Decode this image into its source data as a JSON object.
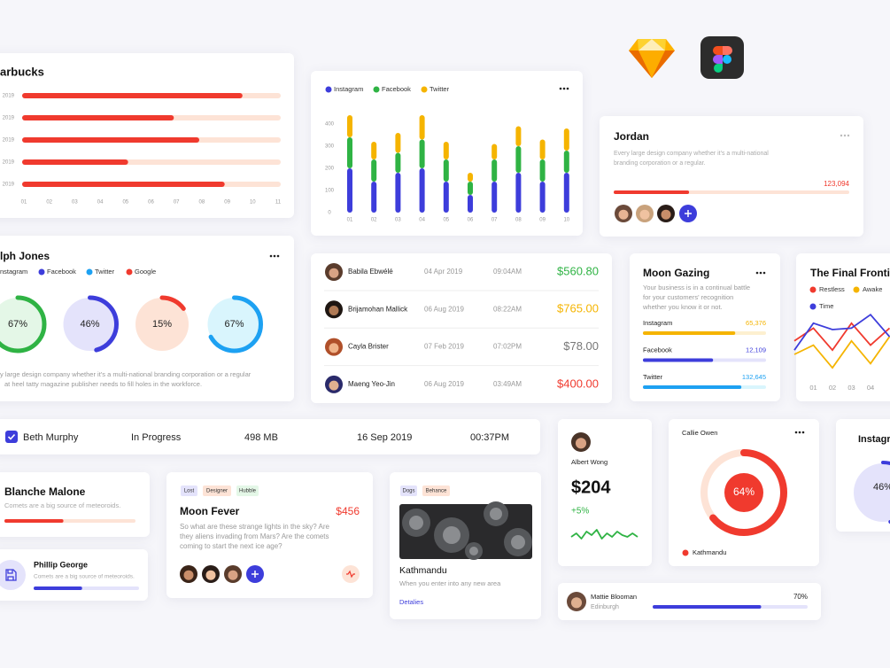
{
  "starbucks": {
    "type": "bar",
    "title": "arbucks",
    "categories": [
      "2019",
      "2019",
      "2019",
      "2019",
      "2019"
    ],
    "values": [
      9.6,
      6.9,
      7.9,
      5.1,
      8.9
    ],
    "color": "#f03a2e",
    "track_color": "#fde3d6",
    "xlim": [
      1,
      11
    ],
    "xticks": [
      {
        "value": 1,
        "label": "01"
      },
      {
        "value": 2,
        "label": "02"
      },
      {
        "value": 3,
        "label": "03"
      },
      {
        "value": 4,
        "label": "04"
      },
      {
        "value": 5,
        "label": "05"
      },
      {
        "value": 6,
        "label": "06"
      },
      {
        "value": 7,
        "label": "07"
      },
      {
        "value": 8,
        "label": "08"
      },
      {
        "value": 9,
        "label": "09"
      },
      {
        "value": 10,
        "label": "10"
      },
      {
        "value": 11,
        "label": "11"
      }
    ]
  },
  "activity": {
    "type": "stacked-bar",
    "categories": [
      "01",
      "02",
      "03",
      "04",
      "05",
      "06",
      "07",
      "08",
      "09",
      "10"
    ],
    "series": [
      {
        "name": "Instagram",
        "color": "#3d3ddb",
        "values": [
          200,
          140,
          180,
          200,
          140,
          80,
          140,
          180,
          140,
          180
        ]
      },
      {
        "name": "Facebook",
        "color": "#2fb344",
        "values": [
          140,
          100,
          90,
          130,
          100,
          60,
          100,
          120,
          100,
          100
        ]
      },
      {
        "name": "Twitter",
        "color": "#f5b400",
        "values": [
          100,
          80,
          90,
          110,
          80,
          40,
          70,
          90,
          90,
          100
        ]
      }
    ],
    "ylim": [
      0,
      450
    ],
    "yticks": [
      0,
      100,
      200,
      300,
      400
    ]
  },
  "jordan": {
    "title": "Jordan",
    "description": [
      "Every large design company whether it's a multi-national",
      "branding corporation or a regular."
    ],
    "value_label": "123,094",
    "progress": 32,
    "color": "#f03a2e"
  },
  "ralph": {
    "title": "lph Jones",
    "legend": [
      {
        "name": "nstagram",
        "color": "#3d3ddb"
      },
      {
        "name": "Facebook",
        "color": "#3d3ddb"
      },
      {
        "name": "Twitter",
        "color": "#1da1f2"
      },
      {
        "name": "Google",
        "color": "#f03a2e"
      }
    ],
    "donuts": [
      {
        "value": 67,
        "label": "67%",
        "color": "#2fb344",
        "fill": "#e4f7e7"
      },
      {
        "value": 46,
        "label": "46%",
        "color": "#3d3ddb",
        "fill": "#e4e3fb"
      },
      {
        "value": 15,
        "label": "15%",
        "color": "#f03a2e",
        "fill": "#fde3d6"
      },
      {
        "value": 67,
        "label": "67%",
        "color": "#1da1f2",
        "fill": "#d9f5fd"
      }
    ],
    "description": [
      "y large design company whether it's a multi-national branding corporation or a regular",
      "at heel tatty magazine publisher needs to fill holes in the workforce."
    ]
  },
  "task": {
    "name": "Beth Murphy",
    "status": "In Progress",
    "size": "498 MB",
    "date": "16 Sep 2019",
    "time": "00:37PM"
  },
  "transactions": {
    "rows": [
      {
        "name": "Babila Ebwélé",
        "date": "04 Apr 2019",
        "time": "09:04AM",
        "amount": "$560.80",
        "color": "#2fb344"
      },
      {
        "name": "Brijamohan Mallick",
        "date": "06 Aug 2019",
        "time": "08:22AM",
        "amount": "$765.00",
        "color": "#f5b400"
      },
      {
        "name": "Cayla Brister",
        "date": "07 Feb 2019",
        "time": "07:02PM",
        "amount": "$78.00",
        "color": "#777777"
      },
      {
        "name": "Maeng Yeo-Jin",
        "date": "06 Aug 2019",
        "time": "03:49AM",
        "amount": "$400.00",
        "color": "#f03a2e"
      }
    ]
  },
  "moon_gazing": {
    "title": "Moon Gazing",
    "description": [
      "Your business is in a continual battle",
      "for your customers' recognition",
      "whether you know it or not."
    ],
    "rows": [
      {
        "name": "Instagram",
        "value_label": "65,376",
        "progress": 75,
        "color": "#f5b400",
        "track": "#fdf0d0"
      },
      {
        "name": "Facebook",
        "value_label": "12,109",
        "progress": 57,
        "color": "#3d3ddb",
        "track": "#e4e3fb"
      },
      {
        "name": "Twitter",
        "value_label": "132,645",
        "progress": 80,
        "color": "#1da1f2",
        "track": "#d9f5fd"
      }
    ]
  },
  "frontier": {
    "type": "line",
    "title": "The Final Frontie",
    "categories": [
      null,
      "01",
      "02",
      "03",
      "04",
      null
    ],
    "series": [
      {
        "name": "Restless",
        "color": "#f03a2e",
        "values": [
          44,
          62,
          31,
          69,
          38,
          62
        ]
      },
      {
        "name": "Awake",
        "color": "#f5b400",
        "values": [
          25,
          38,
          6,
          44,
          12,
          50
        ]
      },
      {
        "name": "Time",
        "color": "#3d3ddb",
        "values": [
          31,
          69,
          60,
          62,
          81,
          50
        ]
      }
    ],
    "ylim": [
      0,
      100
    ]
  },
  "blanche": {
    "title": "Blanche Malone",
    "description": "Comets are a big source of meteoroids.",
    "progress": 45,
    "color": "#f03a2e",
    "track": "#fde3d6"
  },
  "phillip": {
    "title": "Phillip George",
    "description": "Comets are a big source of meteoroids.",
    "progress": 46,
    "color": "#3d3ddb",
    "track": "#e4e3fb"
  },
  "moon_fever": {
    "tags": [
      "Lost",
      "Designer",
      "Hubble"
    ],
    "title": "Moon Fever",
    "price": "$456",
    "description": [
      "So what are these strange lights in the sky? Are",
      "they aliens invading from Mars? Are the comets",
      "coming to start the next ice age?"
    ]
  },
  "kathmandu": {
    "tags": [
      "Dogs",
      "Behance"
    ],
    "title": "Kathmandu",
    "description": "When you enter into any new area",
    "link": "Detalies"
  },
  "albert": {
    "name": "Albert Wong",
    "amount": "$204",
    "change": "+5%",
    "sparkline": {
      "type": "line",
      "values": [
        4,
        6,
        3,
        7,
        5,
        8,
        3,
        6,
        4,
        7,
        5,
        4,
        6,
        4
      ],
      "ylim": [
        0,
        10
      ],
      "color": "#2fb344"
    }
  },
  "callie": {
    "name": "Callie Owen",
    "donut": {
      "value": 64,
      "label": "64%",
      "color": "#f03a2e"
    },
    "legend": "Kathmandu"
  },
  "instagram": {
    "title": "Instagr",
    "donut": {
      "value": 46,
      "label": "46%",
      "color": "#3d3ddb"
    }
  },
  "mattie": {
    "name": "Mattie Blooman",
    "location": "Edinburgh",
    "value": 70,
    "label": "70%"
  }
}
